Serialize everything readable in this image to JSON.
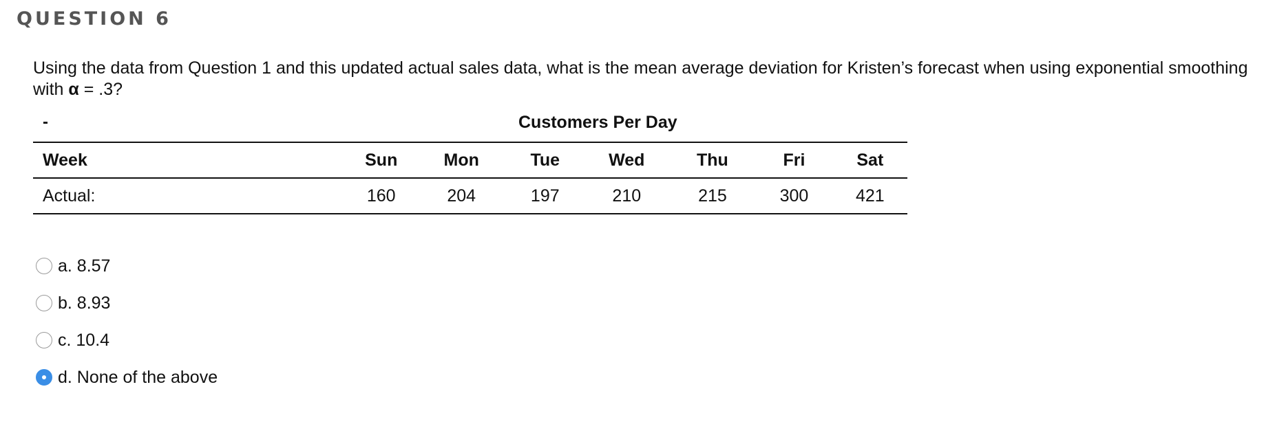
{
  "question": {
    "header": "QUESTION 6",
    "text_before_alpha": "Using the data from Question 1 and this updated actual sales data, what is the mean average deviation for Kristen’s forecast when using exponential smoothing with ",
    "alpha_symbol": "α",
    "text_after_alpha": " = .3?"
  },
  "table": {
    "corner_mark": "-",
    "caption": "Customers Per Day",
    "headers": [
      "Week",
      "Sun",
      "Mon",
      "Tue",
      "Wed",
      "Thu",
      "Fri",
      "Sat"
    ],
    "rows": [
      [
        "Actual:",
        "160",
        "204",
        "197",
        "210",
        "215",
        "300",
        "421"
      ]
    ]
  },
  "options": [
    {
      "label": "a. 8.57",
      "selected": false
    },
    {
      "label": "b. 8.93",
      "selected": false
    },
    {
      "label": "c. 10.4",
      "selected": false
    },
    {
      "label": "d. None of the above",
      "selected": true
    }
  ],
  "colors": {
    "header_gray": "#555555",
    "radio_selected": "#3a8ee6",
    "radio_border": "#9a9a9a"
  }
}
